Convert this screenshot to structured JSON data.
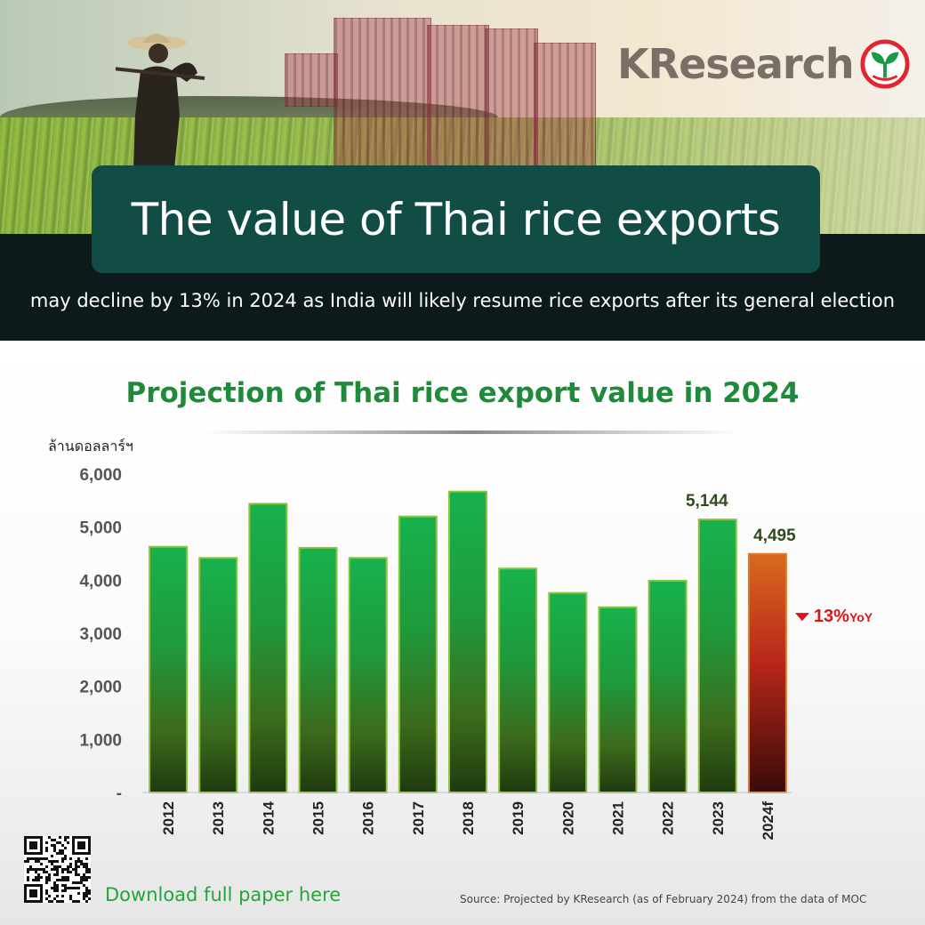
{
  "brand": {
    "name": "KResearch"
  },
  "header": {
    "title": "The value of Thai rice exports",
    "subtitle": "may decline by 13% in 2024 as India will likely resume rice exports after its general election"
  },
  "chart_data": {
    "type": "bar",
    "title": "Projection of Thai rice export value in 2024",
    "ylabel": "ล้านดอลลาร์ฯ",
    "xlabel": "",
    "ylim": [
      0,
      6000
    ],
    "yticks": [
      "-",
      "1,000",
      "2,000",
      "3,000",
      "4,000",
      "5,000",
      "6,000"
    ],
    "categories": [
      "2012",
      "2013",
      "2014",
      "2015",
      "2016",
      "2017",
      "2018",
      "2019",
      "2020",
      "2021",
      "2022",
      "2023",
      "2024f"
    ],
    "values": [
      4630,
      4420,
      5440,
      4610,
      4420,
      5200,
      5670,
      4220,
      3760,
      3490,
      3990,
      5144,
      4495
    ],
    "data_labels": [
      {
        "category": "2023",
        "text": "5,144"
      },
      {
        "category": "2024f",
        "text": "4,495"
      }
    ],
    "annotation": {
      "category": "2024f",
      "value_text": "13%",
      "suffix": "YoY",
      "direction": "down"
    },
    "colors": {
      "bars": "#1fa64a",
      "bar_outline": "#8fc23f",
      "forecast_bar": "#c0392b",
      "annotation": "#d8161b"
    },
    "grid": false,
    "legend": "none"
  },
  "footer": {
    "download_label": "Download full paper here",
    "source": "Source: Projected by KResearch (as of February 2024) from the data of MOC"
  },
  "icons": {
    "qr": "qr-code-icon",
    "logo": "kbank-logo-icon"
  }
}
